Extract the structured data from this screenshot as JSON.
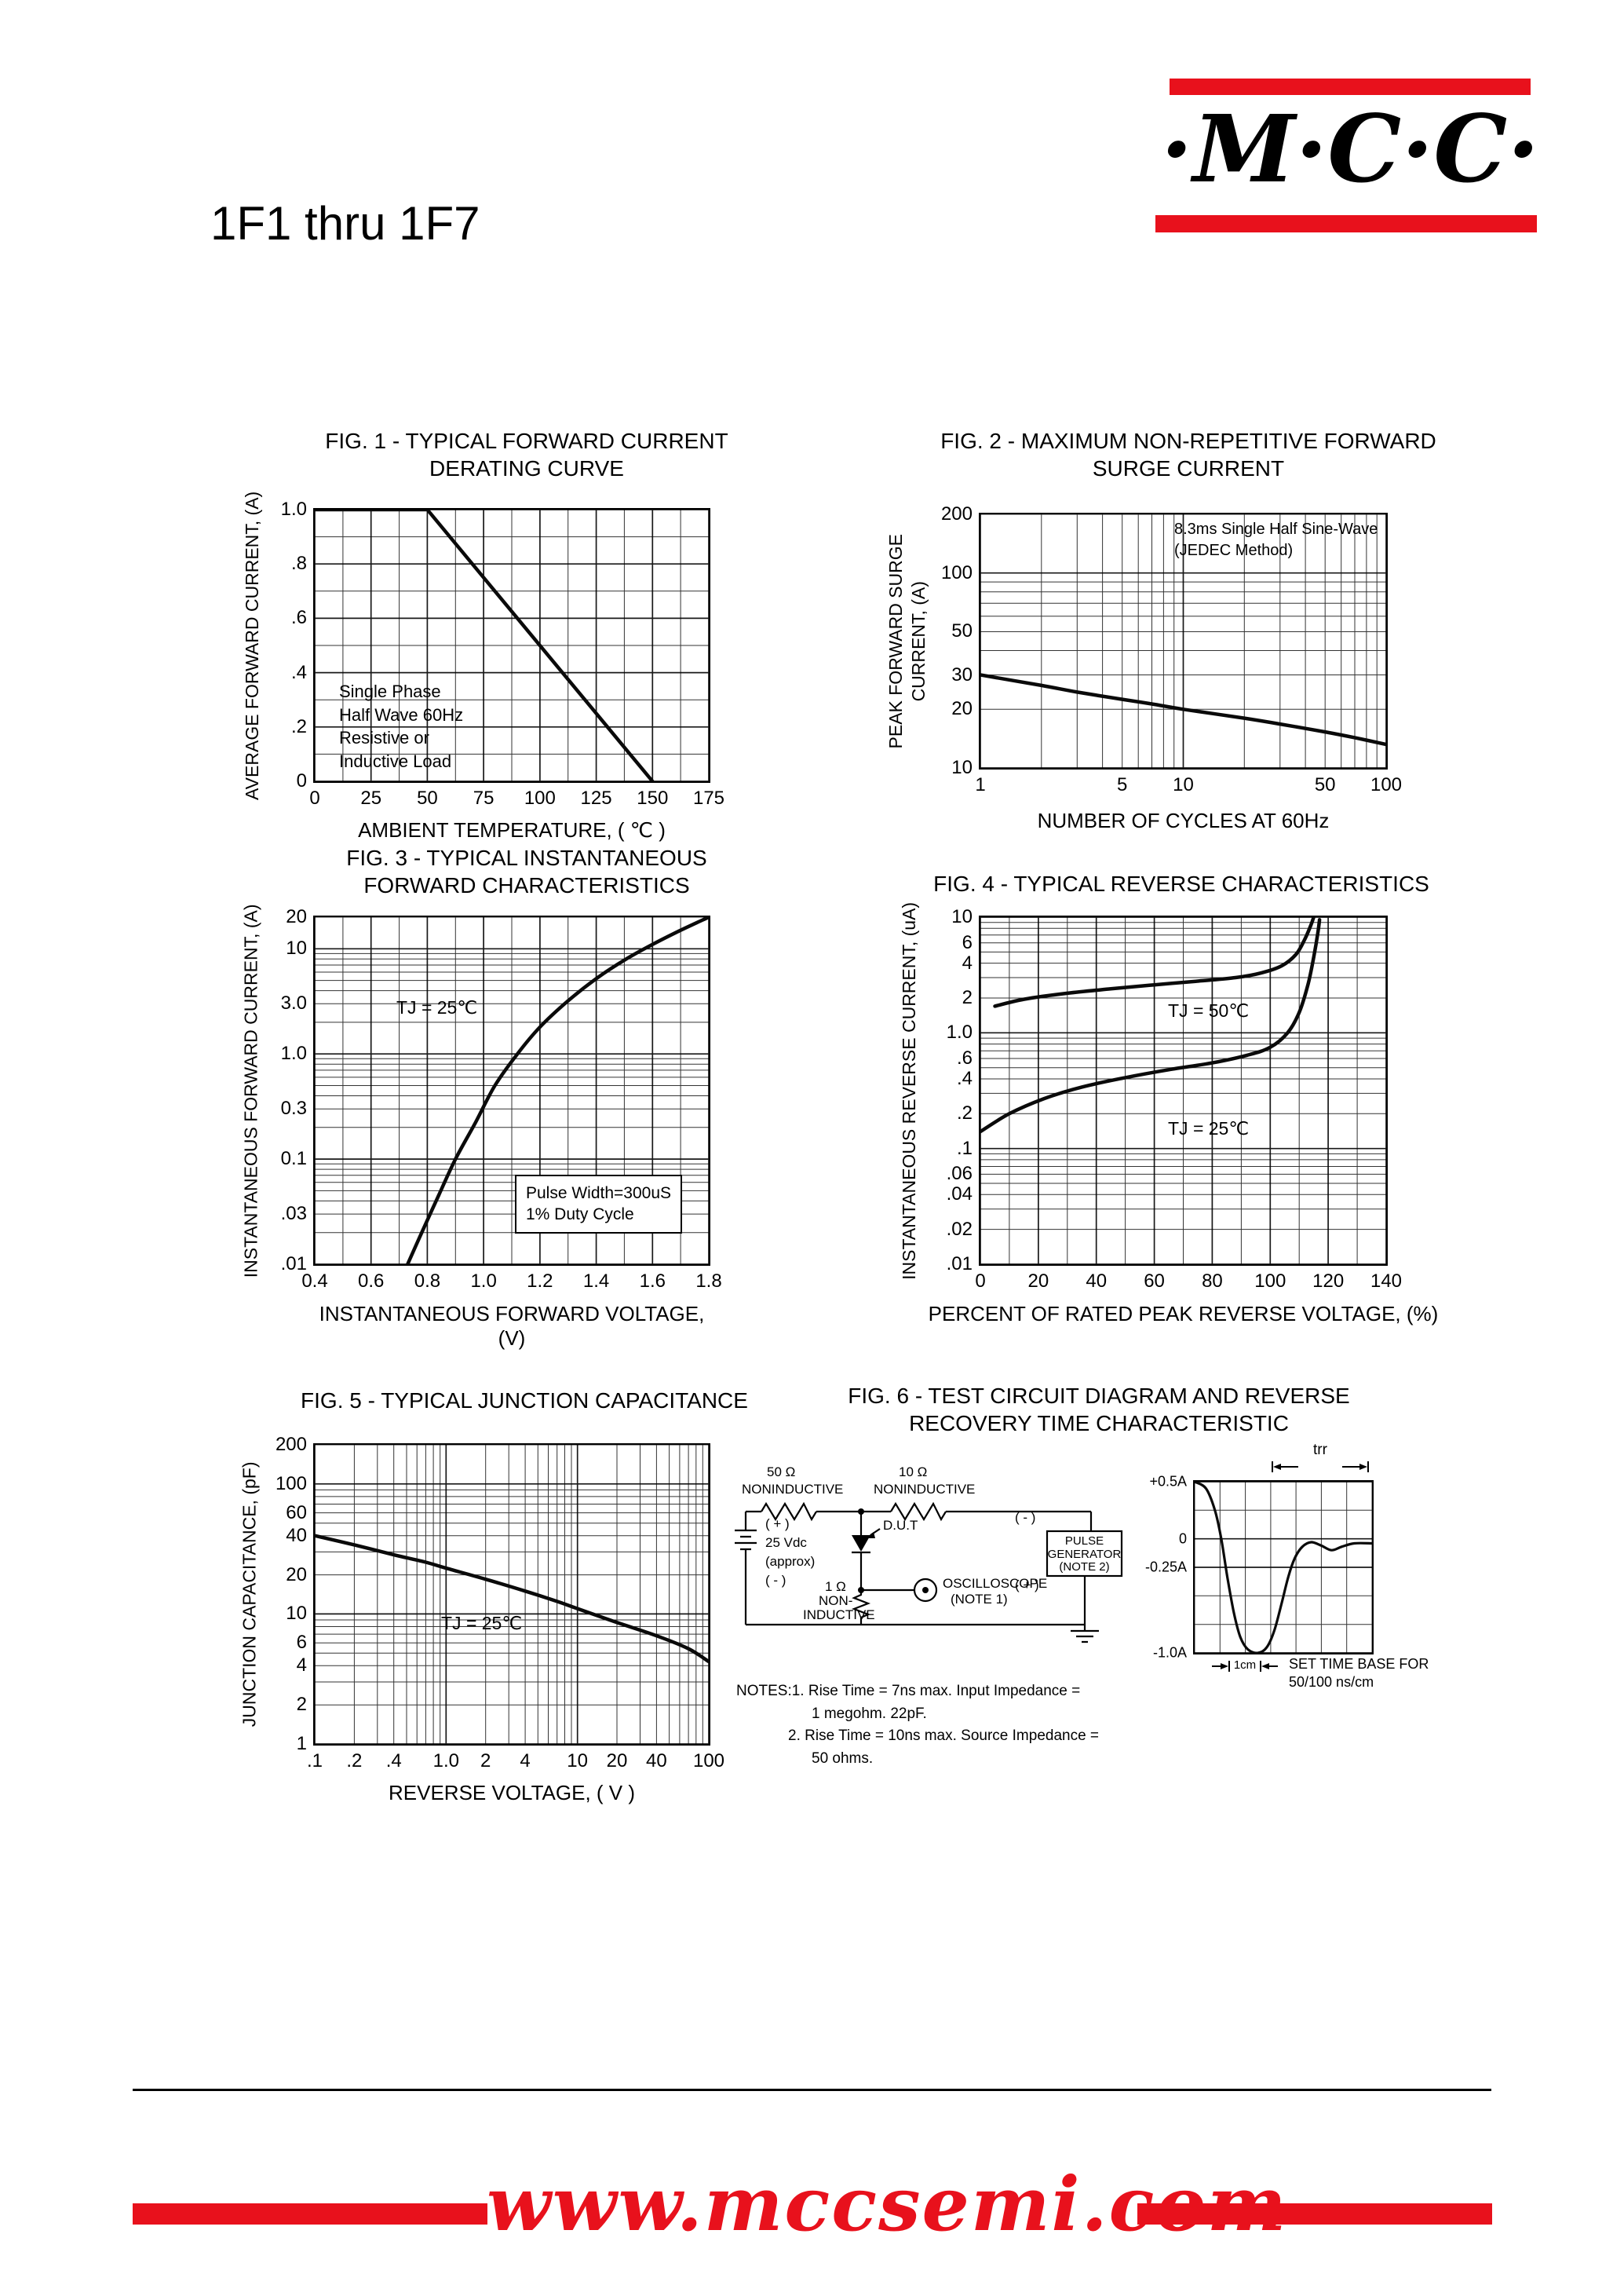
{
  "page_title": "1F1 thru 1F7",
  "logo": {
    "text": "·M·C·C·"
  },
  "colors": {
    "red": "#e8111c",
    "black": "#000000"
  },
  "figures": {
    "fig1": {
      "title1": "FIG. 1 - TYPICAL FORWARD CURRENT",
      "title2": "DERATING CURVE",
      "xlabel": "AMBIENT TEMPERATURE, ( ℃ )",
      "ylabel": "AVERAGE FORWARD CURRENT, (A)",
      "note_lines": [
        "Single Phase",
        "Half Wave 60Hz",
        "Resistive or",
        "Inductive Load"
      ]
    },
    "fig2": {
      "title1": "FIG. 2 - MAXIMUM NON-REPETITIVE FORWARD",
      "title2": "SURGE CURRENT",
      "xlabel": "NUMBER OF CYCLES AT 60Hz",
      "ylabel1": "PEAK FORWARD SURGE",
      "ylabel2": "CURRENT, (A)",
      "note_lines": [
        "8.3ms Single Half Sine-Wave",
        "(JEDEC Method)"
      ]
    },
    "fig3": {
      "title1": "FIG. 3 - TYPICAL INSTANTANEOUS",
      "title2": "FORWARD CHARACTERISTICS",
      "xlabel": "INSTANTANEOUS FORWARD VOLTAGE, (V)",
      "ylabel": "INSTANTANEOUS FORWARD CURRENT, (A)",
      "ann_tj": "TJ = 25℃",
      "pulse_note": [
        "Pulse Width=300uS",
        "1% Duty Cycle"
      ]
    },
    "fig4": {
      "title1": "FIG. 4 - TYPICAL REVERSE CHARACTERISTICS",
      "xlabel": "PERCENT OF RATED PEAK REVERSE VOLTAGE, (%)",
      "ylabel": "INSTANTANEOUS REVERSE CURRENT, (uA)",
      "ann_tj50": "TJ = 50℃",
      "ann_tj25": "TJ = 25℃"
    },
    "fig5": {
      "title1": "FIG. 5 - TYPICAL JUNCTION CAPACITANCE",
      "xlabel": "REVERSE VOLTAGE, ( V )",
      "ylabel": "JUNCTION CAPACITANCE, (pF)",
      "ann_tj": "TJ = 25℃"
    },
    "fig6": {
      "title1": "FIG. 6 - TEST CIRCUIT DIAGRAM  AND REVERSE",
      "title2": "RECOVERY TIME CHARACTERISTIC",
      "circuit": {
        "r1_val": "50 Ω",
        "r1_type": "NONINDUCTIVE",
        "r2_val": "10 Ω",
        "r2_type": "NONINDUCTIVE",
        "bat_plus": "( + )",
        "bat_v": "25 Vdc",
        "bat_approx": "(approx)",
        "bat_minus": "( - )",
        "dut": "D.U.T",
        "r3_val": "1 Ω",
        "r3_a": "NON-",
        "r3_b": "INDUCTIVE",
        "scope": "OSCILLOSCOPE",
        "scope_note": "(NOTE 1)",
        "pg1": "PULSE",
        "pg2": "GENERATOR",
        "pg3": "(NOTE 2)",
        "pg_minus": "( - )",
        "pg_plus": "( + )"
      },
      "wave": {
        "trr": "trr",
        "cm": "1cm",
        "base1": "SET TIME BASE FOR",
        "base2": "50/100 ns/cm"
      },
      "notes": [
        "NOTES:1. Rise Time = 7ns max. Input Impedance =",
        "1 megohm. 22pF.",
        "2. Rise Time = 10ns max. Source Impedance =",
        "50 ohms."
      ]
    }
  },
  "footer": {
    "url": "www.mccsemi.com"
  },
  "chart_data": [
    {
      "id": "fig1",
      "type": "line",
      "title": "FIG. 1 - TYPICAL FORWARD CURRENT DERATING CURVE",
      "xlabel": "AMBIENT TEMPERATURE, ( ℃ )",
      "ylabel": "AVERAGE FORWARD CURRENT, (A)",
      "annotations": [
        "Single Phase",
        "Half Wave 60Hz",
        "Resistive or",
        "Inductive Load"
      ],
      "x": {
        "type": "linear",
        "min": 0,
        "max": 175,
        "grid_step": 12.5,
        "ticks": [
          [
            0,
            "0"
          ],
          [
            25,
            "25"
          ],
          [
            50,
            "50"
          ],
          [
            75,
            "75"
          ],
          [
            100,
            "100"
          ],
          [
            125,
            "125"
          ],
          [
            150,
            "150"
          ],
          [
            175,
            "175"
          ]
        ]
      },
      "y": {
        "type": "linear",
        "min": 0,
        "max": 1.0,
        "grid_step": 0.1,
        "ticks": [
          [
            1.0,
            "1.0"
          ],
          [
            0.8,
            ".8"
          ],
          [
            0.6,
            ".6"
          ],
          [
            0.4,
            ".4"
          ],
          [
            0.2,
            ".2"
          ],
          [
            0,
            "0"
          ]
        ]
      },
      "series": [
        {
          "name": "derating-curve",
          "points": [
            [
              0,
              1.0
            ],
            [
              50,
              1.0
            ],
            [
              150,
              0
            ]
          ]
        }
      ]
    },
    {
      "id": "fig2",
      "type": "line",
      "title": "FIG. 2 - MAXIMUM NON-REPETITIVE FORWARD SURGE CURRENT",
      "xlabel": "NUMBER OF CYCLES AT 60Hz",
      "ylabel": "PEAK FORWARD SURGE CURRENT, (A)",
      "annotations": [
        "8.3ms Single Half Sine-Wave",
        "(JEDEC Method)"
      ],
      "x": {
        "type": "log",
        "min": 1,
        "max": 100,
        "ticks": [
          [
            1,
            "1"
          ],
          [
            5,
            "5"
          ],
          [
            10,
            "10"
          ],
          [
            50,
            "50"
          ],
          [
            100,
            "100"
          ]
        ]
      },
      "y": {
        "type": "log",
        "min": 10,
        "max": 200,
        "ticks": [
          [
            200,
            "200"
          ],
          [
            100,
            "100"
          ],
          [
            50,
            "50"
          ],
          [
            30,
            "30"
          ],
          [
            20,
            "20"
          ],
          [
            10,
            "10"
          ]
        ]
      },
      "series": [
        {
          "name": "surge-current",
          "points": [
            [
              1,
              30
            ],
            [
              2,
              26.5
            ],
            [
              3,
              24.5
            ],
            [
              5,
              22.5
            ],
            [
              7,
              21.3
            ],
            [
              10,
              20
            ],
            [
              20,
              18
            ],
            [
              30,
              16.8
            ],
            [
              50,
              15.3
            ],
            [
              70,
              14.3
            ],
            [
              100,
              13.2
            ]
          ]
        }
      ]
    },
    {
      "id": "fig3",
      "type": "line",
      "title": "FIG. 3 - TYPICAL INSTANTANEOUS FORWARD CHARACTERISTICS",
      "xlabel": "INSTANTANEOUS FORWARD VOLTAGE, (V)",
      "ylabel": "INSTANTANEOUS FORWARD CURRENT, (A)",
      "annotations": [
        "TJ = 25℃",
        "Pulse Width=300uS",
        "1% Duty Cycle"
      ],
      "x": {
        "type": "linear",
        "min": 0.4,
        "max": 1.8,
        "grid_step": 0.1,
        "ticks": [
          [
            0.4,
            "0.4"
          ],
          [
            0.6,
            "0.6"
          ],
          [
            0.8,
            "0.8"
          ],
          [
            1.0,
            "1.0"
          ],
          [
            1.2,
            "1.2"
          ],
          [
            1.4,
            "1.4"
          ],
          [
            1.6,
            "1.6"
          ],
          [
            1.8,
            "1.8"
          ]
        ]
      },
      "y": {
        "type": "log",
        "min": 0.01,
        "max": 20,
        "ticks": [
          [
            20,
            "20"
          ],
          [
            10,
            "10"
          ],
          [
            3,
            "3.0"
          ],
          [
            1,
            "1.0"
          ],
          [
            0.3,
            "0.3"
          ],
          [
            0.1,
            "0.1"
          ],
          [
            0.03,
            ".03"
          ],
          [
            0.01,
            ".01"
          ]
        ]
      },
      "series": [
        {
          "name": "forward-vi",
          "points": [
            [
              0.73,
              0.01
            ],
            [
              0.78,
              0.02
            ],
            [
              0.84,
              0.045
            ],
            [
              0.9,
              0.1
            ],
            [
              0.97,
              0.22
            ],
            [
              1.04,
              0.5
            ],
            [
              1.12,
              1.0
            ],
            [
              1.2,
              1.8
            ],
            [
              1.3,
              3.2
            ],
            [
              1.4,
              5.2
            ],
            [
              1.5,
              7.8
            ],
            [
              1.6,
              11
            ],
            [
              1.7,
              15
            ],
            [
              1.8,
              20
            ]
          ]
        }
      ]
    },
    {
      "id": "fig4",
      "type": "line",
      "title": "FIG. 4 - TYPICAL REVERSE CHARACTERISTICS",
      "xlabel": "PERCENT OF RATED PEAK REVERSE VOLTAGE, (%)",
      "ylabel": "INSTANTANEOUS REVERSE CURRENT, (uA)",
      "annotations": [
        "TJ = 50℃",
        "TJ = 25℃"
      ],
      "x": {
        "type": "linear",
        "min": 0,
        "max": 140,
        "grid_step": 10,
        "ticks": [
          [
            0,
            "0"
          ],
          [
            20,
            "20"
          ],
          [
            40,
            "40"
          ],
          [
            60,
            "60"
          ],
          [
            80,
            "80"
          ],
          [
            100,
            "100"
          ],
          [
            120,
            "120"
          ],
          [
            140,
            "140"
          ]
        ]
      },
      "y": {
        "type": "log",
        "min": 0.01,
        "max": 10,
        "ticks": [
          [
            10,
            "10"
          ],
          [
            6,
            "6"
          ],
          [
            4,
            "4"
          ],
          [
            2,
            "2"
          ],
          [
            1,
            "1.0"
          ],
          [
            0.6,
            ".6"
          ],
          [
            0.4,
            ".4"
          ],
          [
            0.2,
            ".2"
          ],
          [
            0.1,
            ".1"
          ],
          [
            0.06,
            ".06"
          ],
          [
            0.04,
            ".04"
          ],
          [
            0.02,
            ".02"
          ],
          [
            0.01,
            ".01"
          ]
        ]
      },
      "series": [
        {
          "name": "TJ = 50℃",
          "points": [
            [
              5,
              1.7
            ],
            [
              15,
              1.95
            ],
            [
              30,
              2.2
            ],
            [
              45,
              2.4
            ],
            [
              60,
              2.6
            ],
            [
              75,
              2.8
            ],
            [
              88,
              3.0
            ],
            [
              97,
              3.3
            ],
            [
              104,
              3.8
            ],
            [
              109,
              4.8
            ],
            [
              112,
              6.5
            ],
            [
              114,
              8.5
            ],
            [
              115,
              10
            ]
          ]
        },
        {
          "name": "TJ = 25℃",
          "points": [
            [
              0,
              0.14
            ],
            [
              10,
              0.2
            ],
            [
              22,
              0.27
            ],
            [
              35,
              0.34
            ],
            [
              50,
              0.41
            ],
            [
              65,
              0.48
            ],
            [
              80,
              0.55
            ],
            [
              92,
              0.64
            ],
            [
              100,
              0.75
            ],
            [
              106,
              1.0
            ],
            [
              110,
              1.5
            ],
            [
              113,
              2.6
            ],
            [
              115,
              4.5
            ],
            [
              116.5,
              7.5
            ],
            [
              117,
              9.5
            ]
          ]
        }
      ]
    },
    {
      "id": "fig5",
      "type": "line",
      "title": "FIG. 5 - TYPICAL JUNCTION CAPACITANCE",
      "xlabel": "REVERSE VOLTAGE, ( V )",
      "ylabel": "JUNCTION CAPACITANCE, (pF)",
      "annotations": [
        "TJ = 25℃"
      ],
      "x": {
        "type": "log",
        "min": 0.1,
        "max": 100,
        "ticks": [
          [
            0.1,
            ".1"
          ],
          [
            0.2,
            ".2"
          ],
          [
            0.4,
            ".4"
          ],
          [
            1,
            "1.0"
          ],
          [
            2,
            "2"
          ],
          [
            4,
            "4"
          ],
          [
            10,
            "10"
          ],
          [
            20,
            "20"
          ],
          [
            40,
            "40"
          ],
          [
            100,
            "100"
          ]
        ]
      },
      "y": {
        "type": "log",
        "min": 1,
        "max": 200,
        "ticks": [
          [
            200,
            "200"
          ],
          [
            100,
            "100"
          ],
          [
            60,
            "60"
          ],
          [
            40,
            "40"
          ],
          [
            20,
            "20"
          ],
          [
            10,
            "10"
          ],
          [
            6,
            "6"
          ],
          [
            4,
            "4"
          ],
          [
            2,
            "2"
          ],
          [
            1,
            "1"
          ]
        ]
      },
      "series": [
        {
          "name": "junction-capacitance",
          "points": [
            [
              0.1,
              40
            ],
            [
              0.2,
              34
            ],
            [
              0.4,
              28.5
            ],
            [
              0.7,
              25
            ],
            [
              1,
              22.5
            ],
            [
              2,
              18.5
            ],
            [
              4,
              15
            ],
            [
              7,
              12.5
            ],
            [
              10,
              11
            ],
            [
              20,
              8.6
            ],
            [
              40,
              6.8
            ],
            [
              70,
              5.4
            ],
            [
              100,
              4.3
            ]
          ]
        }
      ]
    },
    {
      "id": "wave",
      "type": "line",
      "title": "REVERSE RECOVERY TIME CHARACTERISTIC",
      "xlabel": "",
      "ylabel": "",
      "annotations": [
        "trr",
        "1cm",
        "SET TIME BASE FOR",
        "50/100 ns/cm"
      ],
      "x": {
        "type": "linear",
        "min": 0,
        "max": 7,
        "grid_step": 1,
        "ticks": []
      },
      "y": {
        "type": "linear",
        "min": -1.0,
        "max": 0.5,
        "grid_step": 0.25,
        "ticks": [
          [
            0.5,
            "+0.5A"
          ],
          [
            0,
            "0"
          ],
          [
            -0.25,
            "-0.25A"
          ],
          [
            -1.0,
            "-1.0A"
          ]
        ]
      },
      "series": [
        {
          "name": "recovery-waveform",
          "points": [
            [
              0,
              0.5
            ],
            [
              0.45,
              0.44
            ],
            [
              0.8,
              0.25
            ],
            [
              1.05,
              0
            ],
            [
              1.3,
              -0.35
            ],
            [
              1.55,
              -0.65
            ],
            [
              1.8,
              -0.86
            ],
            [
              2.1,
              -0.97
            ],
            [
              2.5,
              -1.0
            ],
            [
              2.85,
              -0.95
            ],
            [
              3.15,
              -0.8
            ],
            [
              3.45,
              -0.55
            ],
            [
              3.7,
              -0.33
            ],
            [
              3.95,
              -0.17
            ],
            [
              4.25,
              -0.07
            ],
            [
              4.6,
              -0.03
            ],
            [
              5.0,
              -0.06
            ],
            [
              5.4,
              -0.1
            ],
            [
              5.8,
              -0.07
            ],
            [
              6.3,
              -0.04
            ],
            [
              7,
              -0.04
            ]
          ]
        }
      ]
    }
  ]
}
